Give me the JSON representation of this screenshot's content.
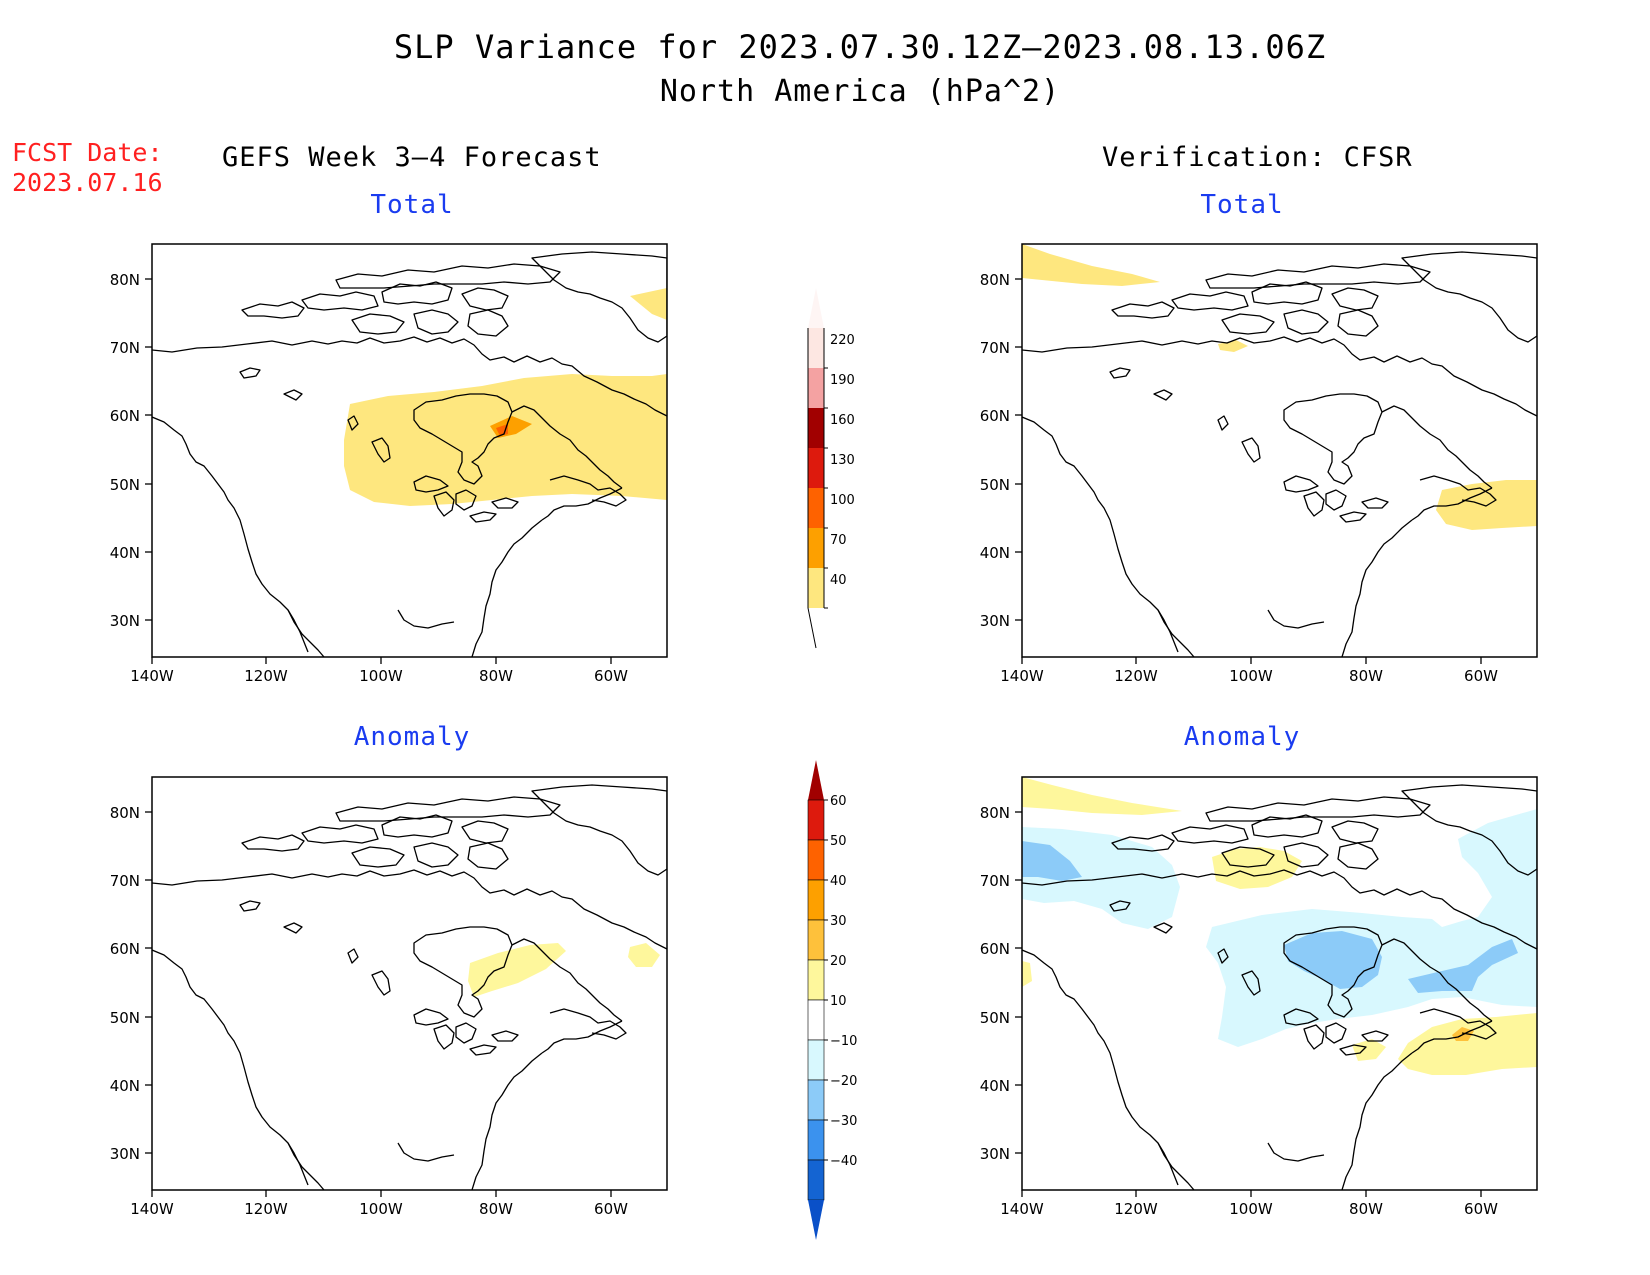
{
  "header": {
    "title_line1": "SLP Variance for 2023.07.30.12Z–2023.08.13.06Z",
    "title_line2": "North America (hPa^2)",
    "fcst_label": "FCST Date:",
    "fcst_date": "2023.07.16",
    "left_column": "GEFS Week 3–4 Forecast",
    "right_column": "Verification: CFSR"
  },
  "panels": [
    {
      "id": "fcst-total",
      "title": "Total"
    },
    {
      "id": "verif-total",
      "title": "Total"
    },
    {
      "id": "fcst-anomaly",
      "title": "Anomaly"
    },
    {
      "id": "verif-anomaly",
      "title": "Anomaly"
    }
  ],
  "axes": {
    "lat_labels": [
      "80N",
      "70N",
      "60N",
      "50N",
      "40N",
      "30N"
    ],
    "lon_labels": [
      "140W",
      "120W",
      "100W",
      "80W",
      "60W"
    ]
  },
  "colorbars": {
    "total": {
      "labels": [
        "220",
        "190",
        "160",
        "130",
        "100",
        "70",
        "40"
      ],
      "colors": [
        "#fde7e2",
        "#f4a2a2",
        "#a10000",
        "#dd1a0d",
        "#fe6200",
        "#fda000",
        "#fee77f"
      ]
    },
    "anomaly": {
      "labels": [
        "60",
        "50",
        "40",
        "30",
        "20",
        "10",
        "-10",
        "-20",
        "-30",
        "-40"
      ],
      "colors": [
        "#a10000",
        "#dd1a0d",
        "#fe6200",
        "#fda000",
        "#fec13b",
        "#fef79c",
        "#ffffff",
        "#d8f8fe",
        "#8ccbf8",
        "#3b92ee",
        "#1464d2",
        "#0a50c8"
      ]
    }
  },
  "shading_colors": {
    "light_yellow": "#fee77f",
    "pale_yellow": "#fef79c",
    "orange": "#fda000",
    "dark_orange": "#fe6200",
    "light_blue": "#d8f8fe",
    "mid_blue": "#8ccbf8"
  }
}
